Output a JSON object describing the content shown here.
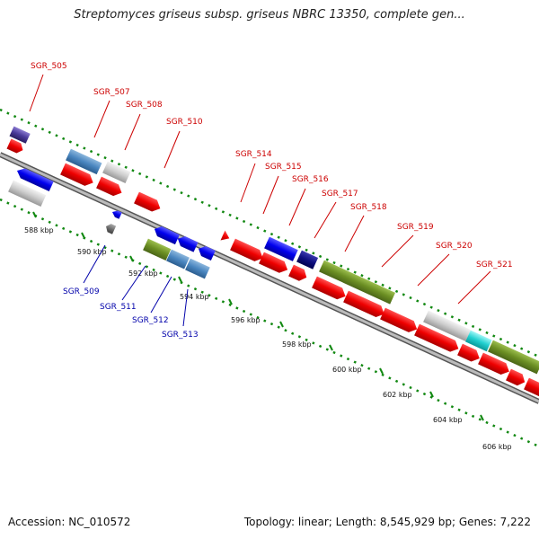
{
  "title": "Streptomyces griseus subsp. griseus NBRC 13350, complete gen...",
  "footer": {
    "accession": "Accession: NC_010572",
    "summary": "Topology: linear; Length: 8,545,929 bp; Genes: 7,222"
  },
  "colors": {
    "forward_label": "#cc0000",
    "reverse_label": "#0000aa",
    "backbone": "#888888",
    "tick": "#118811"
  },
  "scale_labels": [
    "588 kbp",
    "590 kbp",
    "592 kbp",
    "594 kbp",
    "596 kbp",
    "598 kbp",
    "600 kbp",
    "602 kbp",
    "604 kbp",
    "606 kbp"
  ],
  "gene_labels": [
    {
      "text": "SGR_505",
      "strand": "forward"
    },
    {
      "text": "SGR_507",
      "strand": "forward"
    },
    {
      "text": "SGR_508",
      "strand": "forward"
    },
    {
      "text": "SGR_510",
      "strand": "forward"
    },
    {
      "text": "SGR_514",
      "strand": "forward"
    },
    {
      "text": "SGR_515",
      "strand": "forward"
    },
    {
      "text": "SGR_516",
      "strand": "forward"
    },
    {
      "text": "SGR_517",
      "strand": "forward"
    },
    {
      "text": "SGR_518",
      "strand": "forward"
    },
    {
      "text": "SGR_519",
      "strand": "forward"
    },
    {
      "text": "SGR_520",
      "strand": "forward"
    },
    {
      "text": "SGR_521",
      "strand": "forward"
    },
    {
      "text": "SGR_509",
      "strand": "reverse"
    },
    {
      "text": "SGR_511",
      "strand": "reverse"
    },
    {
      "text": "SGR_512",
      "strand": "reverse"
    },
    {
      "text": "SGR_513",
      "strand": "reverse"
    }
  ]
}
